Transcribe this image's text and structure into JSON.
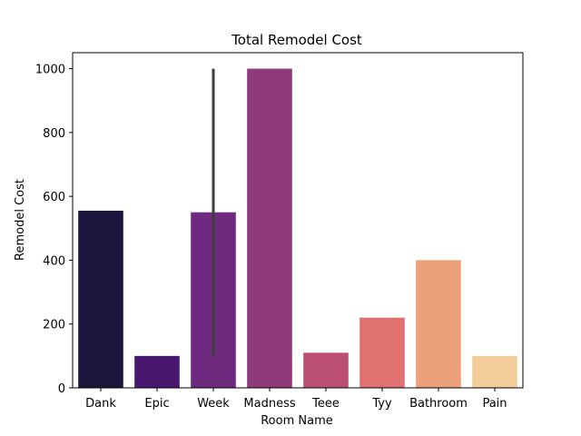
{
  "chart_data": {
    "type": "bar",
    "title": "Total Remodel Cost",
    "xlabel": "Room Name",
    "ylabel": "Remodel Cost",
    "categories": [
      "Dank",
      "Epic",
      "Week",
      "Madness",
      "Teee",
      "Tyy",
      "Bathroom",
      "Pain"
    ],
    "values": [
      555,
      100,
      550,
      1000,
      110,
      220,
      400,
      100
    ],
    "error_bars": [
      null,
      null,
      [
        100,
        1000
      ],
      null,
      null,
      null,
      null,
      null
    ],
    "colors": [
      "#1c163c",
      "#4a1770",
      "#6d2a7e",
      "#8f3a7a",
      "#ba4f73",
      "#e17070",
      "#eca07a",
      "#f2cc99"
    ],
    "ylim": [
      0,
      1050
    ],
    "yticks": [
      0,
      200,
      400,
      600,
      800,
      1000
    ],
    "grid": false,
    "legend": "none"
  }
}
